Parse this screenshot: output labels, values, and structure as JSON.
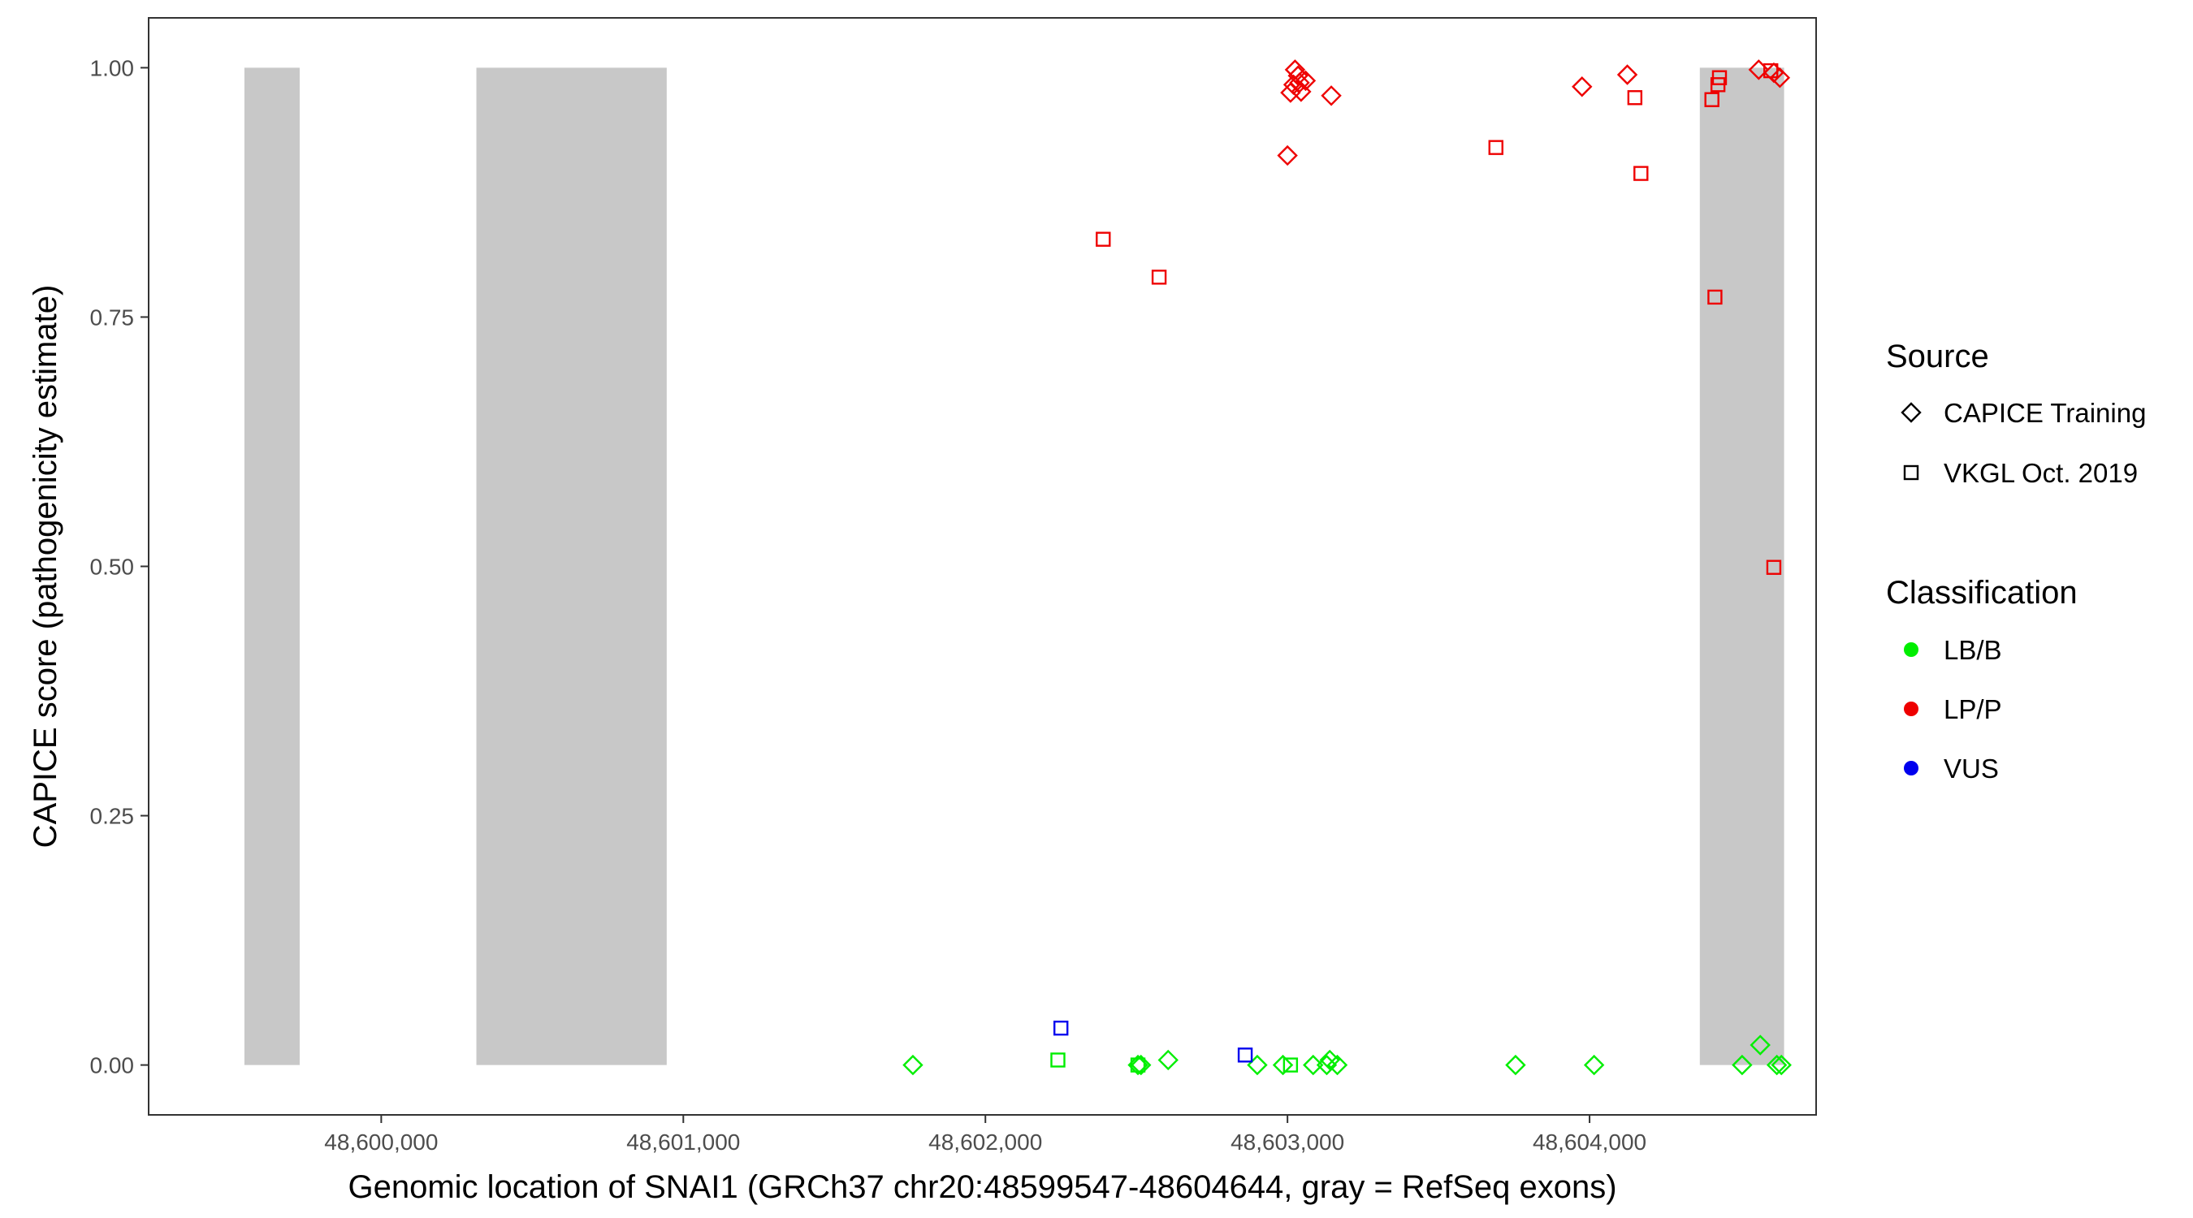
{
  "chart_data": {
    "type": "scatter",
    "xlabel": "Genomic location of SNAI1 (GRCh37 chr20:48599547-48604644, gray = RefSeq exons)",
    "ylabel": "CAPICE score (pathogenicity estimate)",
    "xlim": [
      48599230,
      48604750
    ],
    "ylim": [
      -0.05,
      1.05
    ],
    "x_ticks": [
      48600000,
      48601000,
      48602000,
      48603000,
      48604000
    ],
    "x_tick_labels": [
      "48,600,000",
      "48,601,000",
      "48,602,000",
      "48,603,000",
      "48,604,000"
    ],
    "y_ticks": [
      0,
      0.25,
      0.5,
      0.75,
      1.0
    ],
    "y_tick_labels": [
      "0.00",
      "0.25",
      "0.50",
      "0.75",
      "1.00"
    ],
    "grid": false,
    "exons": [
      {
        "start": 48599547,
        "end": 48599730
      },
      {
        "start": 48600315,
        "end": 48600945
      },
      {
        "start": 48604365,
        "end": 48604644
      }
    ],
    "exon_color": "#c8c8c8",
    "colors": {
      "LB/B": "#00ee00",
      "LP/P": "#ee0000",
      "VUS": "#0000ee"
    },
    "legend_position": "right",
    "legends": [
      {
        "title": "Source",
        "entries": [
          {
            "label": "CAPICE Training",
            "shape": "diamond"
          },
          {
            "label": "VKGL Oct. 2019",
            "shape": "square"
          }
        ]
      },
      {
        "title": "Classification",
        "entries": [
          {
            "label": "LB/B",
            "color": "#00ee00"
          },
          {
            "label": "LP/P",
            "color": "#ee0000"
          },
          {
            "label": "VUS",
            "color": "#0000ee"
          }
        ]
      }
    ],
    "series": [
      {
        "source": "CAPICE Training",
        "classification": "LP/P",
        "shape": "diamond",
        "color": "#ee0000",
        "points": [
          [
            48603000,
            0.912
          ],
          [
            48603010,
            0.975
          ],
          [
            48603020,
            0.983
          ],
          [
            48603025,
            0.998
          ],
          [
            48603035,
            0.992
          ],
          [
            48603040,
            0.985
          ],
          [
            48603045,
            0.976
          ],
          [
            48603060,
            0.987
          ],
          [
            48603145,
            0.972
          ],
          [
            48603975,
            0.981
          ],
          [
            48604125,
            0.993
          ],
          [
            48604560,
            0.998
          ],
          [
            48604610,
            0.995
          ],
          [
            48604630,
            0.99
          ]
        ]
      },
      {
        "source": "VKGL Oct. 2019",
        "classification": "LP/P",
        "shape": "square",
        "color": "#ee0000",
        "points": [
          [
            48602390,
            0.828
          ],
          [
            48602575,
            0.79
          ],
          [
            48603690,
            0.92
          ],
          [
            48604150,
            0.97
          ],
          [
            48604170,
            0.894
          ],
          [
            48604405,
            0.968
          ],
          [
            48604425,
            0.983
          ],
          [
            48604430,
            0.99
          ],
          [
            48604415,
            0.77
          ],
          [
            48604600,
            0.997
          ],
          [
            48604610,
            0.499
          ]
        ]
      },
      {
        "source": "CAPICE Training",
        "classification": "LB/B",
        "shape": "diamond",
        "color": "#00ee00",
        "points": [
          [
            48601760,
            0.0
          ],
          [
            48602505,
            0.0
          ],
          [
            48602515,
            0.0
          ],
          [
            48602605,
            0.005
          ],
          [
            48602900,
            0.0
          ],
          [
            48602985,
            0.0
          ],
          [
            48603085,
            0.0
          ],
          [
            48603130,
            0.0
          ],
          [
            48603140,
            0.005
          ],
          [
            48603165,
            0.0
          ],
          [
            48603755,
            0.0
          ],
          [
            48604015,
            0.0
          ],
          [
            48604505,
            0.0
          ],
          [
            48604565,
            0.02
          ],
          [
            48604620,
            0.0
          ],
          [
            48604635,
            0.0
          ]
        ]
      },
      {
        "source": "VKGL Oct. 2019",
        "classification": "LB/B",
        "shape": "square",
        "color": "#00ee00",
        "points": [
          [
            48602240,
            0.005
          ],
          [
            48602505,
            0.0
          ],
          [
            48603010,
            0.0
          ]
        ]
      },
      {
        "source": "VKGL Oct. 2019",
        "classification": "VUS",
        "shape": "square",
        "color": "#0000ee",
        "points": [
          [
            48602250,
            0.037
          ],
          [
            48602860,
            0.01
          ]
        ]
      }
    ]
  }
}
